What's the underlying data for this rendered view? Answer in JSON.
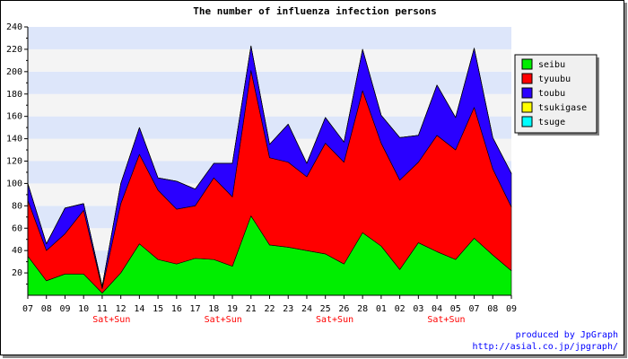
{
  "chart_data": {
    "type": "area",
    "stacked": true,
    "title": "The number of influenza infection persons",
    "xlabel": "",
    "ylabel": "",
    "ylim": [
      0,
      240
    ],
    "y_ticks": [
      20,
      40,
      60,
      80,
      100,
      120,
      140,
      160,
      180,
      200,
      220,
      240
    ],
    "categories": [
      "07",
      "08",
      "09",
      "10",
      "11",
      "12",
      "14",
      "15",
      "16",
      "17",
      "18",
      "19",
      "21",
      "22",
      "23",
      "24",
      "25",
      "26",
      "28",
      "01",
      "02",
      "03",
      "04",
      "05",
      "07",
      "08",
      "09"
    ],
    "weekend_label": "Sat+Sun",
    "weekend_indices": [
      4,
      10,
      16,
      22
    ],
    "legend_position": "right",
    "grid": true,
    "series": [
      {
        "name": "seibu",
        "color": "#00ee00",
        "values": [
          35,
          13,
          19,
          19,
          2,
          20,
          46,
          32,
          28,
          33,
          32,
          26,
          71,
          45,
          43,
          40,
          37,
          28,
          56,
          44,
          23,
          47,
          39,
          32,
          51,
          36,
          22
        ]
      },
      {
        "name": "tyuubu",
        "color": "#ff0000",
        "values": [
          50,
          27,
          36,
          57,
          4,
          62,
          80,
          62,
          49,
          47,
          73,
          62,
          130,
          78,
          76,
          66,
          99,
          91,
          127,
          92,
          80,
          72,
          104,
          98,
          117,
          77,
          57
        ]
      },
      {
        "name": "toubu",
        "color": "#2a00ff",
        "values": [
          15,
          6,
          23,
          6,
          2,
          18,
          24,
          11,
          25,
          15,
          13,
          30,
          22,
          12,
          34,
          12,
          23,
          18,
          37,
          25,
          38,
          24,
          45,
          29,
          53,
          28,
          30
        ]
      },
      {
        "name": "tsukigase",
        "color": "#ffff00",
        "values": [
          0,
          0,
          0,
          0,
          0,
          0,
          0,
          0,
          0,
          0,
          0,
          0,
          0,
          0,
          0,
          0,
          0,
          0,
          0,
          0,
          0,
          0,
          0,
          0,
          0,
          0,
          0
        ]
      },
      {
        "name": "tsuge",
        "color": "#00ffff",
        "values": [
          0,
          0,
          0,
          0,
          0,
          0,
          0,
          0,
          0,
          0,
          0,
          0,
          0,
          0,
          0,
          0,
          0,
          0,
          0,
          0,
          0,
          0,
          0,
          0,
          0,
          0,
          0
        ]
      }
    ]
  },
  "credits": {
    "line1": "produced by JpGraph",
    "line2": "http://asial.co.jp/jpgraph/"
  }
}
